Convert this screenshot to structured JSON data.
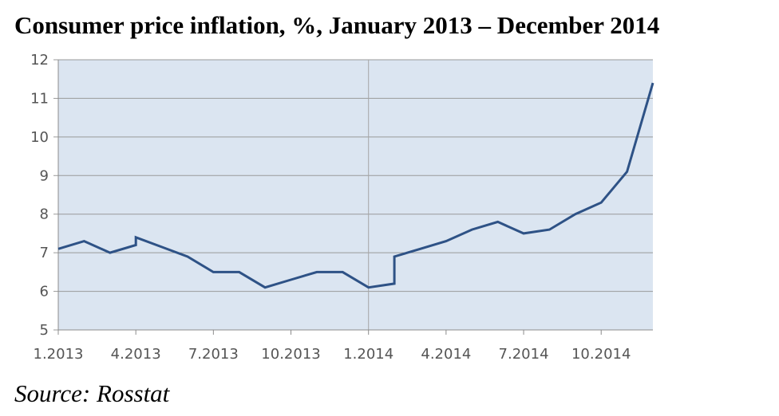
{
  "chart_data": {
    "type": "line",
    "title": "Consumer price inflation, %, January 2013 – December 2014",
    "xlabel": "",
    "ylabel": "",
    "ylim": [
      5,
      12
    ],
    "yticks": [
      5,
      6,
      7,
      8,
      9,
      10,
      11,
      12
    ],
    "xlim": [
      1,
      24
    ],
    "xticks": [
      {
        "x": 1,
        "label": "1.2013"
      },
      {
        "x": 4,
        "label": "4.2013"
      },
      {
        "x": 7,
        "label": "7.2013"
      },
      {
        "x": 10,
        "label": "10.2013"
      },
      {
        "x": 13,
        "label": "1.2014"
      },
      {
        "x": 16,
        "label": "4.2014"
      },
      {
        "x": 19,
        "label": "7.2014"
      },
      {
        "x": 22,
        "label": "10.2014"
      }
    ],
    "grid": true,
    "background_color": "#dbe5f1",
    "line_color": "#2e5286",
    "series": [
      {
        "points": [
          [
            1,
            7.1
          ],
          [
            2,
            7.3
          ],
          [
            3,
            7.0
          ],
          [
            4,
            7.2
          ],
          [
            4,
            7.4
          ],
          [
            5,
            7.15
          ],
          [
            6,
            6.9
          ],
          [
            7,
            6.5
          ],
          [
            8,
            6.5
          ],
          [
            9,
            6.1
          ],
          [
            10,
            6.3
          ],
          [
            11,
            6.5
          ],
          [
            12,
            6.5
          ],
          [
            13,
            6.1
          ],
          [
            14,
            6.2
          ],
          [
            14,
            6.9
          ],
          [
            15,
            7.1
          ],
          [
            16,
            7.3
          ],
          [
            17,
            7.6
          ],
          [
            18,
            7.8
          ],
          [
            19,
            7.5
          ],
          [
            20,
            7.6
          ],
          [
            21,
            8.0
          ],
          [
            22,
            8.3
          ],
          [
            23,
            9.1
          ],
          [
            24,
            11.4
          ]
        ]
      }
    ]
  },
  "source": "Source: Rosstat"
}
